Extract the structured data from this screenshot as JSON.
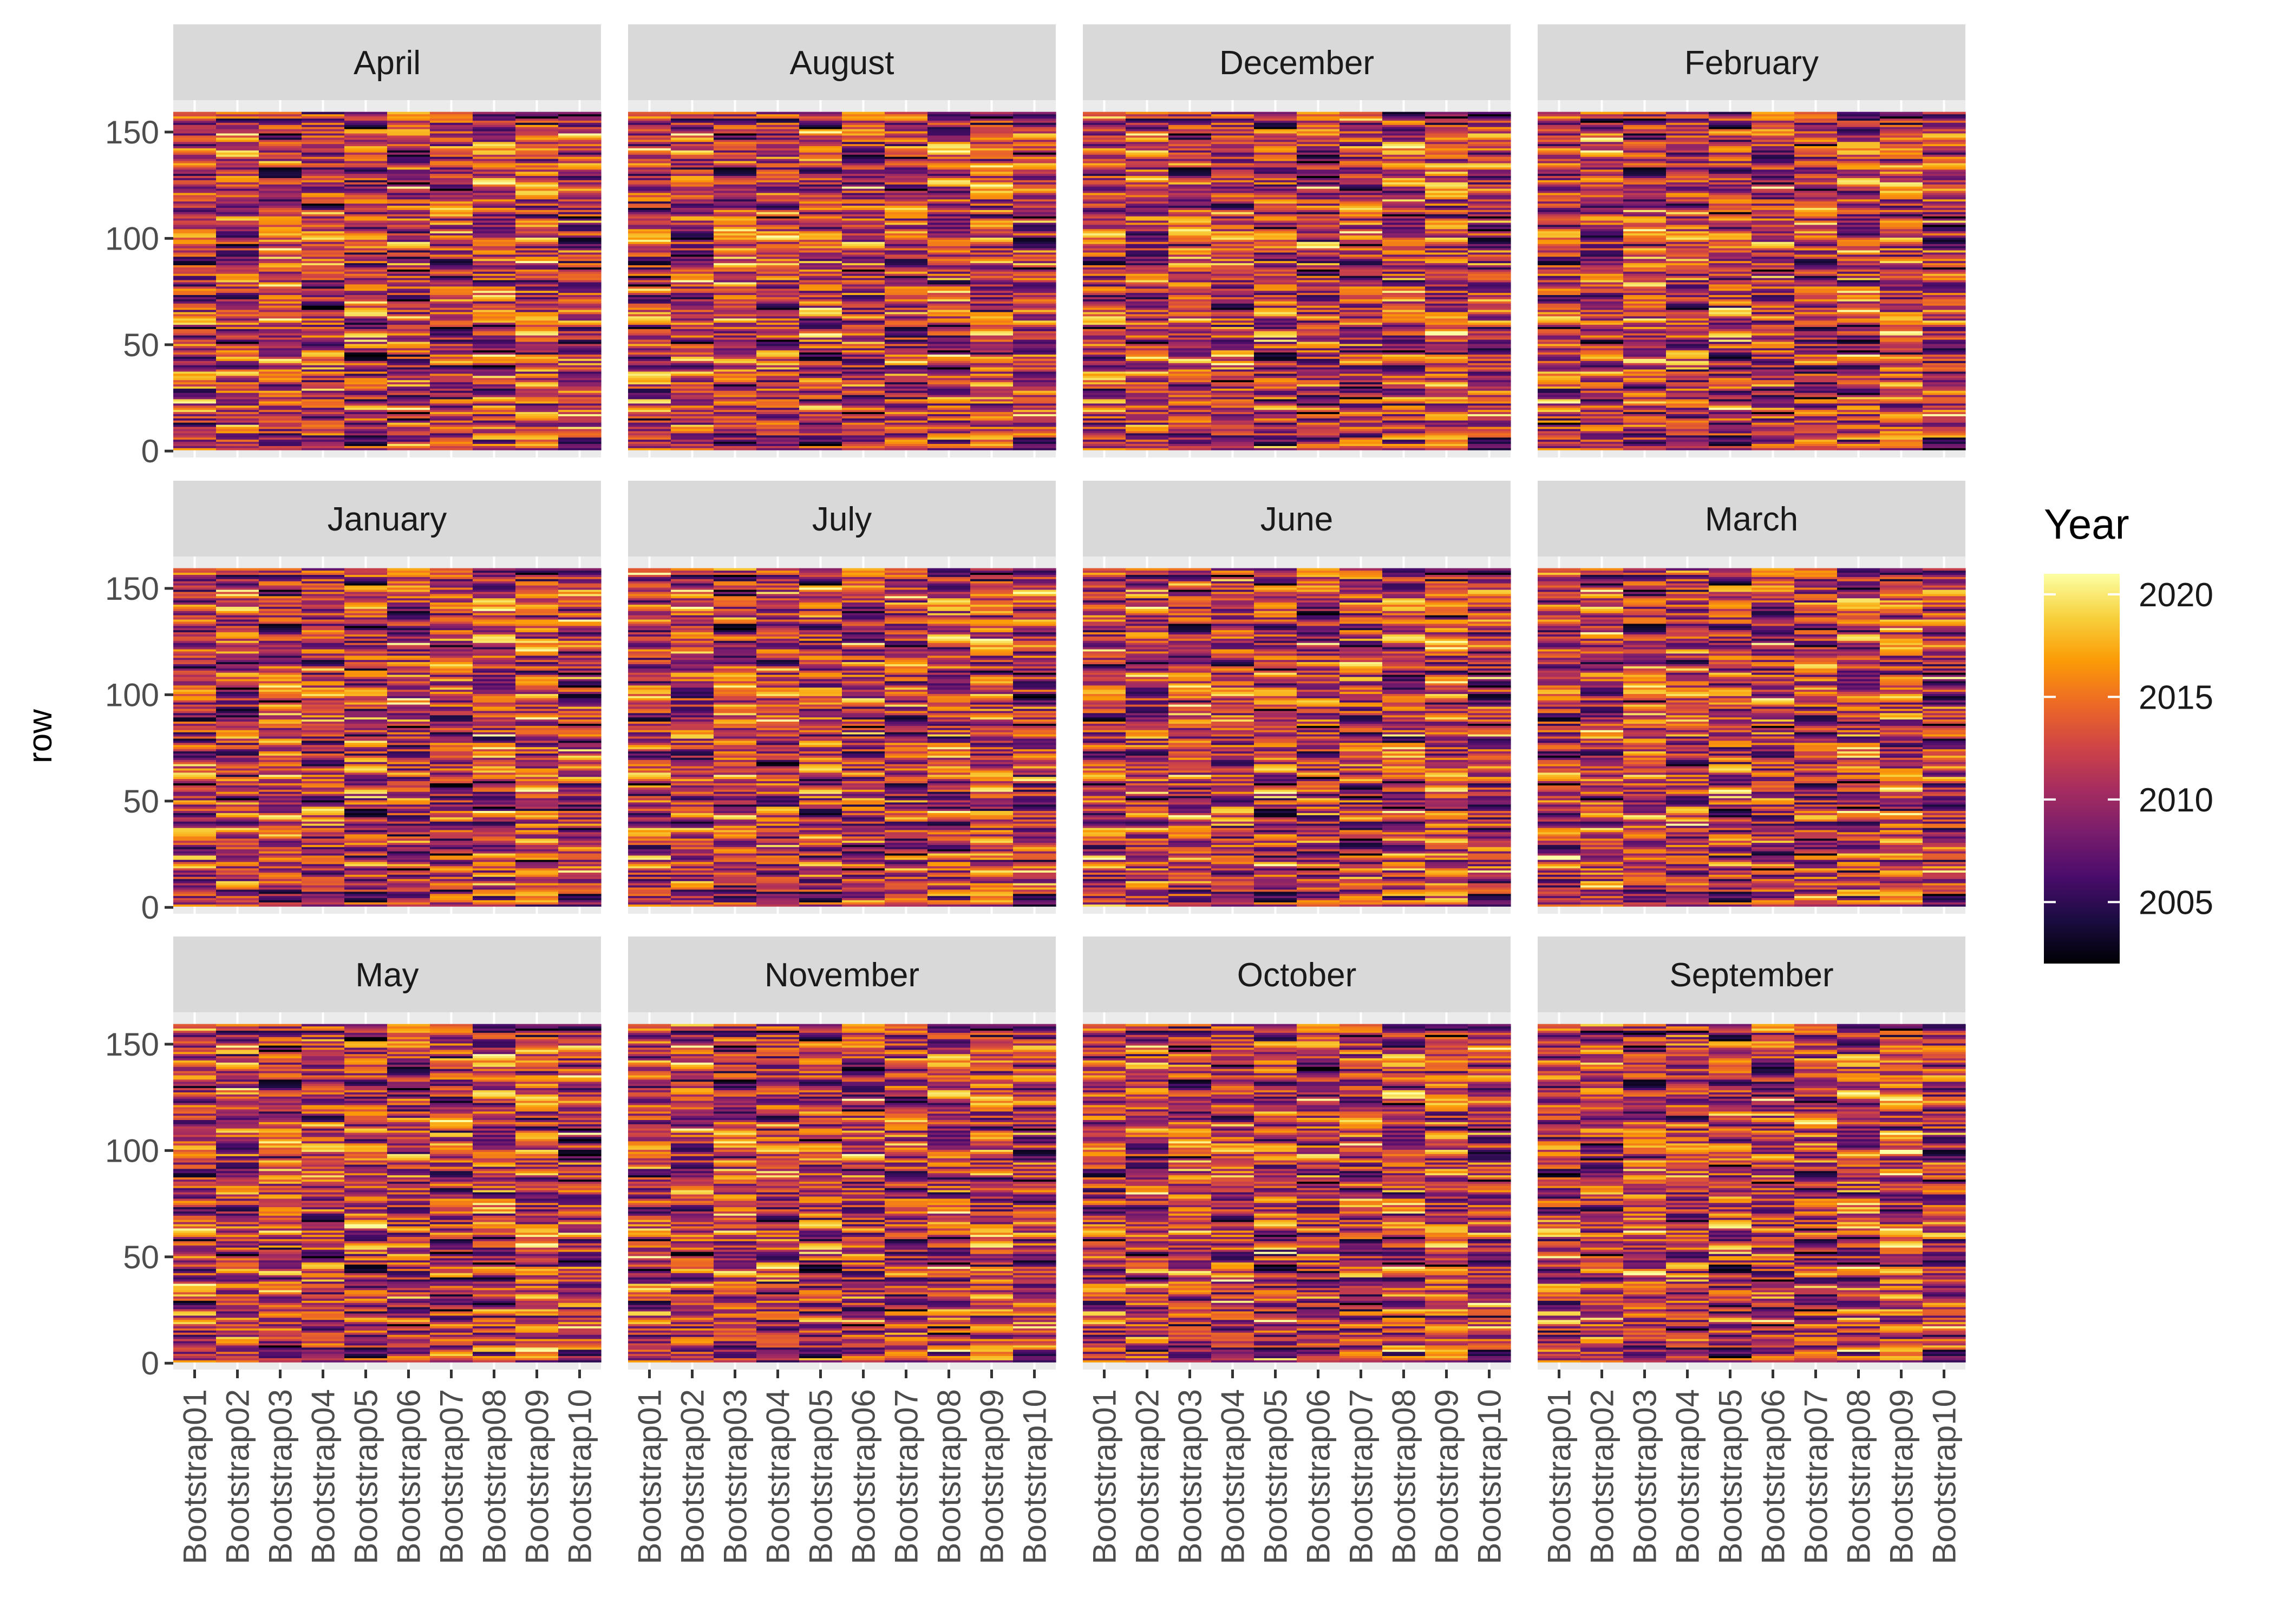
{
  "chart_data": {
    "type": "heatmap",
    "ylabel": "row",
    "panels": [
      "April",
      "August",
      "December",
      "February",
      "January",
      "July",
      "June",
      "March",
      "May",
      "November",
      "October",
      "September"
    ],
    "columns": [
      "Bootstrap01",
      "Bootstrap02",
      "Bootstrap03",
      "Bootstrap04",
      "Bootstrap05",
      "Bootstrap06",
      "Bootstrap07",
      "Bootstrap08",
      "Bootstrap09",
      "Bootstrap10"
    ],
    "y_ticks": [
      "0",
      "50",
      "100",
      "150"
    ],
    "y_tick_values": [
      0,
      50,
      100,
      150
    ],
    "ylim": [
      -3,
      165
    ],
    "rows_per_column": 159,
    "value_range": [
      2002,
      2021
    ],
    "colorscale": "inferno",
    "colorscale_stops": [
      "#000004",
      "#1b0c41",
      "#4a0c6b",
      "#781c6d",
      "#a52c60",
      "#cf4446",
      "#ed6925",
      "#fb9b06",
      "#f7d13d",
      "#fcffa4"
    ],
    "legend": {
      "title": "Year",
      "ticks": [
        "2005",
        "2010",
        "2015",
        "2020"
      ],
      "tick_values": [
        2005,
        2010,
        2015,
        2020
      ],
      "position": "right"
    },
    "grid": true
  }
}
